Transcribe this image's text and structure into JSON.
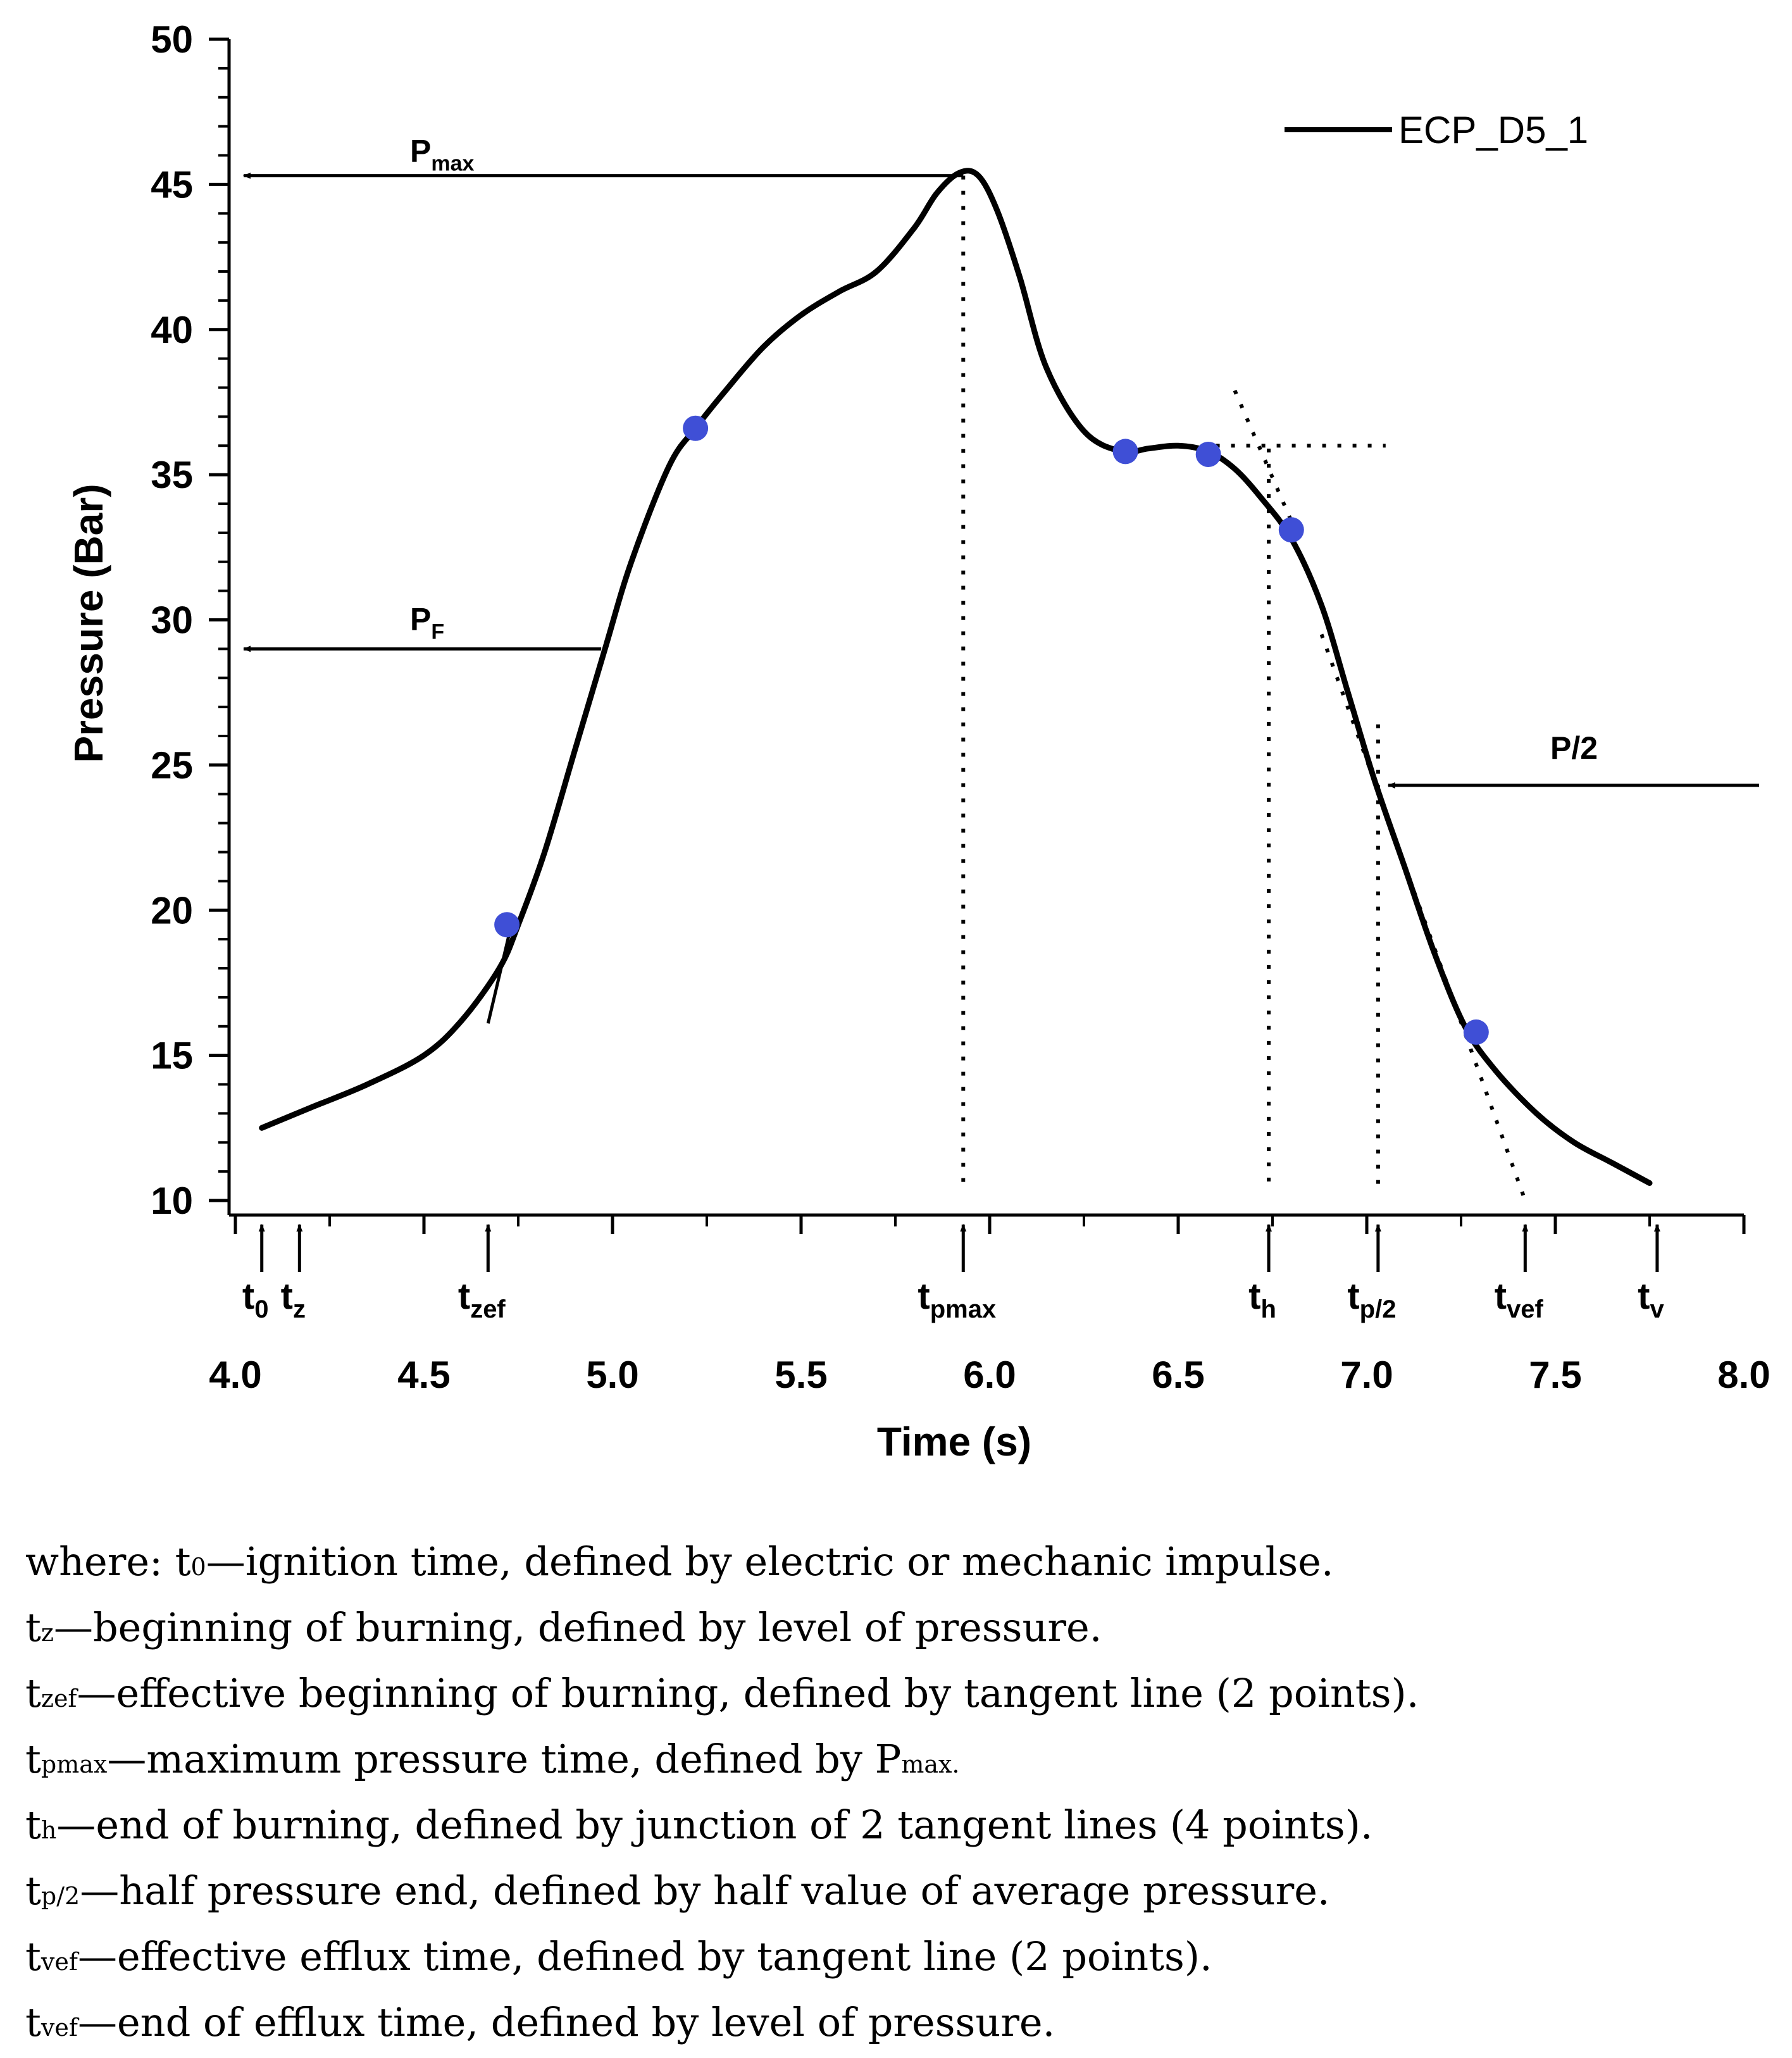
{
  "chart_data": {
    "type": "line",
    "xlabel": "Time (s)",
    "ylabel": "Pressure (Bar)",
    "xlim": [
      4.0,
      8.0
    ],
    "ylim": [
      10,
      50
    ],
    "x_ticks": [
      "4.0",
      "4.5",
      "5.0",
      "5.5",
      "6.0",
      "6.5",
      "7.0",
      "7.5",
      "8.0"
    ],
    "y_ticks": [
      "10",
      "15",
      "20",
      "25",
      "30",
      "35",
      "40",
      "45",
      "50"
    ],
    "legend": {
      "label": "ECP_D5_1",
      "position": "top-right"
    },
    "series": [
      {
        "name": "ECP_D5_1",
        "x": [
          4.07,
          4.2,
          4.35,
          4.5,
          4.6,
          4.7,
          4.75,
          4.82,
          4.9,
          4.98,
          5.05,
          5.15,
          5.22,
          5.3,
          5.4,
          5.5,
          5.6,
          5.7,
          5.8,
          5.86,
          5.92,
          5.97,
          6.02,
          6.08,
          6.15,
          6.25,
          6.35,
          6.42,
          6.5,
          6.58,
          6.65,
          6.72,
          6.8,
          6.88,
          6.95,
          7.02,
          7.1,
          7.18,
          7.26,
          7.34,
          7.45,
          7.55,
          7.65,
          7.75
        ],
        "values": [
          12.5,
          13.2,
          14.0,
          15.0,
          16.2,
          18.0,
          19.5,
          22.0,
          25.5,
          29.0,
          32.0,
          35.3,
          36.6,
          37.9,
          39.4,
          40.5,
          41.3,
          42.0,
          43.5,
          44.7,
          45.4,
          45.3,
          44.1,
          41.8,
          38.7,
          36.5,
          35.8,
          35.9,
          36.0,
          35.8,
          35.2,
          34.2,
          32.8,
          30.5,
          27.5,
          24.5,
          21.5,
          18.5,
          16.0,
          14.5,
          13.0,
          12.0,
          11.3,
          10.6
        ]
      }
    ],
    "marked_points": [
      {
        "x": 4.72,
        "y": 19.5
      },
      {
        "x": 5.22,
        "y": 36.6
      },
      {
        "x": 6.36,
        "y": 35.8
      },
      {
        "x": 6.58,
        "y": 35.7
      },
      {
        "x": 6.8,
        "y": 33.1
      },
      {
        "x": 7.29,
        "y": 15.8
      }
    ],
    "annotations": {
      "pmax": {
        "label": "P",
        "sub": "max",
        "value": 45.3,
        "x_end": 5.93
      },
      "pf": {
        "label": "P",
        "sub": "F",
        "value": 29.0,
        "x_end": 4.97
      },
      "phalf": {
        "label": "P/2",
        "value": 24.3,
        "x_start": 7.04
      },
      "time_markers": [
        {
          "label": "t",
          "sub": "0",
          "x": 4.07
        },
        {
          "label": "t",
          "sub": "z",
          "x": 4.17
        },
        {
          "label": "t",
          "sub": "zef",
          "x": 4.67
        },
        {
          "label": "t",
          "sub": "pmax",
          "x": 5.93
        },
        {
          "label": "t",
          "sub": "h",
          "x": 6.74
        },
        {
          "label": "t",
          "sub": "p/2",
          "x": 7.03
        },
        {
          "label": "t",
          "sub": "vef",
          "x": 7.42
        },
        {
          "label": "t",
          "sub": "v",
          "x": 7.77
        }
      ]
    },
    "colors": {
      "line": "#000000",
      "points": "#3f4fd6",
      "axis": "#000000"
    }
  },
  "caption": [
    {
      "sym": "t",
      "sub": "0",
      "pre": "where: ",
      "text": "—ignition time, defined by electric or mechanic impulse."
    },
    {
      "sym": "t",
      "sub": "z",
      "pre": "",
      "text": "—beginning of burning, defined by level of pressure."
    },
    {
      "sym": "t",
      "sub": "zef",
      "pre": "",
      "text": "—effective beginning of burning, defined by tangent line (2 points)."
    },
    {
      "sym": "t",
      "sub": "pmax",
      "pre": "",
      "text": "—maximum pressure time, defined by P",
      "tail_sub": "max."
    },
    {
      "sym": "t",
      "sub": "h",
      "pre": "",
      "text": "—end of burning, defined by junction of 2 tangent lines (4 points)."
    },
    {
      "sym": "t",
      "sub": "p/2",
      "pre": "",
      "text": "—half pressure end, defined by half value of average pressure."
    },
    {
      "sym": "t",
      "sub": "vef",
      "pre": "",
      "text": "—effective efflux time, defined by tangent line (2 points)."
    },
    {
      "sym": "t",
      "sub": "vef",
      "pre": "",
      "text": "—end of efflux time, defined by level of pressure."
    }
  ]
}
